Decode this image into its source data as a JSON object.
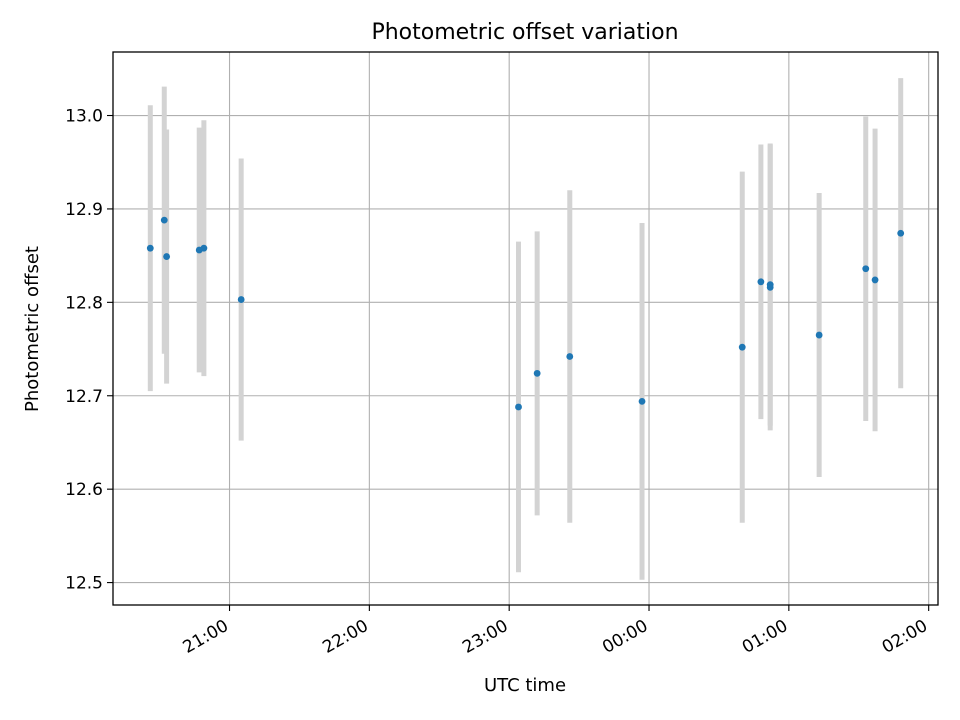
{
  "chart_data": {
    "type": "scatter",
    "title": "Photometric offset variation",
    "xlabel": "UTC time",
    "ylabel": "Photometric offset",
    "x_ticks": [
      "21:00",
      "22:00",
      "23:00",
      "00:00",
      "01:00",
      "02:00"
    ],
    "y_ticks": [
      "12.5",
      "12.6",
      "12.7",
      "12.8",
      "12.9",
      "13.0"
    ],
    "xlim": [
      "20:10",
      "02:04"
    ],
    "ylim": [
      12.476,
      13.068
    ],
    "grid": true,
    "marker_color": "#1f77b4",
    "errorbar_color": "#d3d3d3",
    "points": [
      {
        "t": "20:26",
        "y": 12.858,
        "err": 0.153
      },
      {
        "t": "20:32",
        "y": 12.888,
        "err": 0.143
      },
      {
        "t": "20:33",
        "y": 12.849,
        "err": 0.136
      },
      {
        "t": "20:47",
        "y": 12.856,
        "err": 0.131
      },
      {
        "t": "20:49",
        "y": 12.858,
        "err": 0.137
      },
      {
        "t": "21:05",
        "y": 12.803,
        "err": 0.151
      },
      {
        "t": "23:04",
        "y": 12.688,
        "err": 0.177
      },
      {
        "t": "23:12",
        "y": 12.724,
        "err": 0.152
      },
      {
        "t": "23:26",
        "y": 12.742,
        "err": 0.178
      },
      {
        "t": "23:57",
        "y": 12.694,
        "err": 0.191
      },
      {
        "t": "00:40",
        "y": 12.752,
        "err": 0.188
      },
      {
        "t": "00:48",
        "y": 12.822,
        "err": 0.147
      },
      {
        "t": "00:52",
        "y": 12.816,
        "err": 0.153
      },
      {
        "t": "00:52",
        "y": 12.819,
        "err": 0.151
      },
      {
        "t": "01:13",
        "y": 12.765,
        "err": 0.152
      },
      {
        "t": "01:33",
        "y": 12.836,
        "err": 0.163
      },
      {
        "t": "01:37",
        "y": 12.824,
        "err": 0.162
      },
      {
        "t": "01:48",
        "y": 12.874,
        "err": 0.166
      }
    ]
  }
}
